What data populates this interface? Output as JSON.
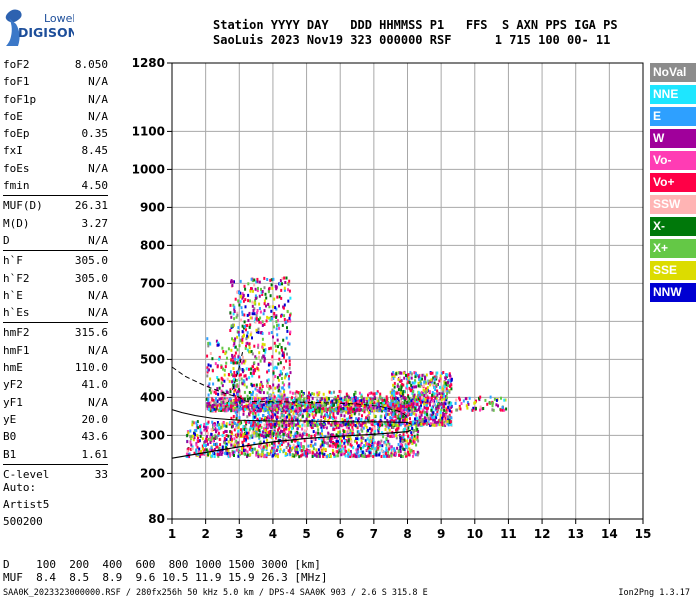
{
  "logo": {
    "line1": "Lowell",
    "line2": "DIGISONDE"
  },
  "header": {
    "line1": "Station YYYY DAY   DDD HHMMSS P1   FFS  S AXN PPS IGA PS",
    "line2": "SaoLuis 2023 Nov19 323 000000 RSF      1 715 100 00- 11"
  },
  "params": [
    [
      {
        "name": "foF2",
        "value": "8.050"
      },
      {
        "name": "foF1",
        "value": "N/A"
      },
      {
        "name": "foF1p",
        "value": "N/A"
      },
      {
        "name": "foE",
        "value": "N/A"
      },
      {
        "name": "foEp",
        "value": "0.35"
      },
      {
        "name": "fxI",
        "value": "8.45"
      },
      {
        "name": "foEs",
        "value": "N/A"
      },
      {
        "name": "fmin",
        "value": "4.50"
      }
    ],
    [
      {
        "name": "MUF(D)",
        "value": "26.31"
      },
      {
        "name": "M(D)",
        "value": "3.27"
      },
      {
        "name": "D",
        "value": "N/A"
      }
    ],
    [
      {
        "name": "h`F",
        "value": "305.0"
      },
      {
        "name": "h`F2",
        "value": "305.0"
      },
      {
        "name": "h`E",
        "value": "N/A"
      },
      {
        "name": "h`Es",
        "value": "N/A"
      }
    ],
    [
      {
        "name": "hmF2",
        "value": "315.6"
      },
      {
        "name": "hmF1",
        "value": "N/A"
      },
      {
        "name": "hmE",
        "value": "110.0"
      },
      {
        "name": "yF2",
        "value": "41.0"
      },
      {
        "name": "yF1",
        "value": "N/A"
      },
      {
        "name": "yE",
        "value": "20.0"
      },
      {
        "name": "B0",
        "value": "43.6"
      },
      {
        "name": "B1",
        "value": "1.61"
      }
    ],
    [
      {
        "name": "C-level",
        "value": "33"
      }
    ]
  ],
  "auto": {
    "line1": "Auto:",
    "line2": "Artist5",
    "line3": "500200"
  },
  "legend": [
    {
      "label": "NoVal",
      "color": "#8c8c8c"
    },
    {
      "label": "NNE",
      "color": "#1ee6ff"
    },
    {
      "label": "E",
      "color": "#2ea0ff"
    },
    {
      "label": "W",
      "color": "#a0009b"
    },
    {
      "label": "Vo-",
      "color": "#ff3cb4"
    },
    {
      "label": "Vo+",
      "color": "#ff0046"
    },
    {
      "label": "SSW",
      "color": "#ffb4b4"
    },
    {
      "label": "X-",
      "color": "#00780a"
    },
    {
      "label": "X+",
      "color": "#64c846"
    },
    {
      "label": "SSE",
      "color": "#dcdc00"
    },
    {
      "label": "NNW",
      "color": "#0000d2"
    }
  ],
  "bottom": {
    "d_label": "D",
    "d_values": [
      "100",
      "200",
      "400",
      "600",
      "800",
      "1000",
      "1500",
      "3000"
    ],
    "d_unit": "[km]",
    "muf_label": "MUF",
    "muf_values": [
      "8.4",
      "8.5",
      "8.9",
      "9.6",
      "10.5",
      "11.9",
      "15.9",
      "26.3"
    ],
    "muf_unit": "[MHz]"
  },
  "footer": {
    "left": "SAA0K_2023323000000.RSF / 280fx256h 50 kHz 5.0 km / DPS-4 SAA0K 903 / 2.6 S 315.8 E",
    "right": "Ion2Png 1.3.17"
  },
  "chart_data": {
    "type": "scatter",
    "x_ticks": [
      1,
      2,
      3,
      4,
      5,
      6,
      7,
      8,
      9,
      10,
      11,
      12,
      13,
      14,
      15
    ],
    "y_ticks": [
      80,
      200,
      300,
      400,
      500,
      600,
      700,
      800,
      900,
      1000,
      1100,
      1280
    ],
    "xlim": [
      1,
      15
    ],
    "ylim": [
      80,
      1280
    ],
    "grid": true,
    "legend_placement": "right",
    "trace": [
      [
        1,
        240
      ],
      [
        2,
        255
      ],
      [
        3,
        270
      ],
      [
        4,
        283
      ],
      [
        5,
        292
      ],
      [
        6,
        298
      ],
      [
        7,
        303
      ],
      [
        8,
        310
      ],
      [
        8.1,
        314
      ]
    ],
    "profile_upper": [
      [
        1,
        368
      ],
      [
        1.3,
        360
      ],
      [
        1.7,
        352
      ],
      [
        2.2,
        345
      ],
      [
        3,
        340
      ],
      [
        4,
        338
      ],
      [
        5,
        338
      ],
      [
        6,
        336
      ],
      [
        7,
        336
      ],
      [
        8,
        334
      ],
      [
        8.1,
        330
      ]
    ],
    "profile_curve": [
      [
        1,
        480
      ],
      [
        1.4,
        455
      ],
      [
        2,
        430
      ],
      [
        2.6,
        410
      ],
      [
        3,
        400
      ],
      [
        3.2,
        390
      ],
      [
        3.6,
        389
      ],
      [
        4.5,
        388
      ],
      [
        5.5,
        386
      ],
      [
        6.5,
        383
      ],
      [
        7.2,
        376
      ],
      [
        7.8,
        362
      ],
      [
        8.05,
        345
      ]
    ],
    "profile_tail": [
      [
        2.8,
        420
      ],
      [
        3.0,
        480
      ],
      [
        3.1,
        520
      ]
    ],
    "echo_regions": [
      {
        "x": [
          1.4,
          8.3
        ],
        "y": [
          248,
          342
        ],
        "density": 1300
      },
      {
        "x": [
          2.0,
          8.2
        ],
        "y": [
          368,
          402
        ],
        "density": 900
      },
      {
        "x": [
          2.7,
          4.5
        ],
        "y": [
          300,
          720
        ],
        "density": 750
      },
      {
        "x": [
          3.8,
          7.9
        ],
        "y": [
          330,
          420
        ],
        "density": 650
      },
      {
        "x": [
          7.5,
          9.3
        ],
        "y": [
          330,
          470
        ],
        "density": 700
      },
      {
        "x": [
          9.4,
          10.9
        ],
        "y": [
          370,
          405
        ],
        "density": 60
      },
      {
        "x": [
          2.0,
          3.0
        ],
        "y": [
          410,
          560
        ],
        "density": 120
      }
    ]
  }
}
